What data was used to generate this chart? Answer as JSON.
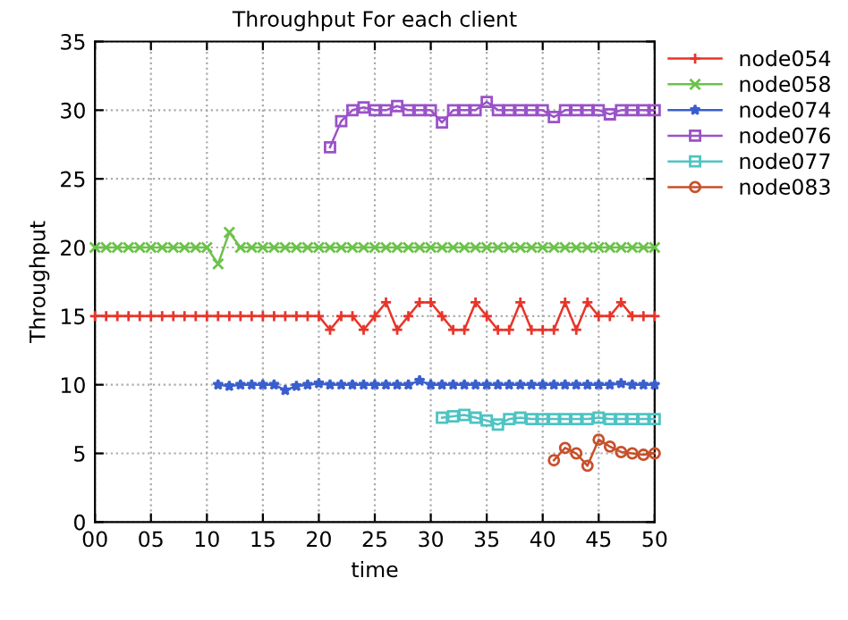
{
  "chart_data": {
    "type": "line",
    "title": "Throughput For each client",
    "xlabel": "time",
    "ylabel": "Throughput",
    "xlim": [
      0,
      50
    ],
    "xticks": [
      {
        "value": 0,
        "label": "00"
      },
      {
        "value": 5,
        "label": "05"
      },
      10,
      15,
      20,
      25,
      30,
      35,
      40,
      45,
      50
    ],
    "ylim": [
      0,
      35
    ],
    "yticks": [
      0,
      5,
      10,
      15,
      20,
      25,
      30,
      35
    ],
    "grid": true,
    "legend": "right",
    "line_style": "solid",
    "series": [
      {
        "name": "node054",
        "color": "#e8352a",
        "marker": "plus",
        "x": [
          0,
          1,
          2,
          3,
          4,
          5,
          6,
          7,
          8,
          9,
          10,
          11,
          12,
          13,
          14,
          15,
          16,
          17,
          18,
          19,
          20,
          21,
          22,
          23,
          24,
          25,
          26,
          27,
          28,
          29,
          30,
          31,
          32,
          33,
          34,
          35,
          36,
          37,
          38,
          39,
          40,
          41,
          42,
          43,
          44,
          45,
          46,
          47,
          48,
          49,
          50
        ],
        "values": [
          15,
          15,
          15,
          15,
          15,
          15,
          15,
          15,
          15,
          15,
          15,
          15,
          15,
          15,
          15,
          15,
          15,
          15,
          15,
          15,
          15,
          14,
          15,
          15,
          14,
          15,
          16,
          14,
          15,
          16,
          16,
          15,
          14,
          14,
          16,
          15,
          14,
          14,
          16,
          14,
          14,
          14,
          16,
          14,
          16,
          15,
          15,
          16,
          15,
          15,
          15
        ]
      },
      {
        "name": "node058",
        "color": "#6cc24a",
        "marker": "cross",
        "x": [
          0,
          1,
          2,
          3,
          4,
          5,
          6,
          7,
          8,
          9,
          10,
          11,
          12,
          13,
          14,
          15,
          16,
          17,
          18,
          19,
          20,
          21,
          22,
          23,
          24,
          25,
          26,
          27,
          28,
          29,
          30,
          31,
          32,
          33,
          34,
          35,
          36,
          37,
          38,
          39,
          40,
          41,
          42,
          43,
          44,
          45,
          46,
          47,
          48,
          49,
          50
        ],
        "values": [
          20,
          20,
          20,
          20,
          20,
          20,
          20,
          20,
          20,
          20,
          20,
          18.8,
          21.1,
          20,
          20,
          20,
          20,
          20,
          20,
          20,
          20,
          20,
          20,
          20,
          20,
          20,
          20,
          20,
          20,
          20,
          20,
          20,
          20,
          20,
          20,
          20,
          20,
          20,
          20,
          20,
          20,
          20,
          20,
          20,
          20,
          20,
          20,
          20,
          20,
          20,
          20
        ]
      },
      {
        "name": "node074",
        "color": "#3a5fcd",
        "marker": "star",
        "x": [
          11,
          12,
          13,
          14,
          15,
          16,
          17,
          18,
          19,
          20,
          21,
          22,
          23,
          24,
          25,
          26,
          27,
          28,
          29,
          30,
          31,
          32,
          33,
          34,
          35,
          36,
          37,
          38,
          39,
          40,
          41,
          42,
          43,
          44,
          45,
          46,
          47,
          48,
          49,
          50
        ],
        "values": [
          10,
          9.9,
          10,
          10,
          10,
          10,
          9.6,
          9.9,
          10,
          10.1,
          10,
          10,
          10,
          10,
          10,
          10,
          10,
          10,
          10.3,
          10,
          10,
          10,
          10,
          10,
          10,
          10,
          10,
          10,
          10,
          10,
          10,
          10,
          10,
          10,
          10,
          10,
          10.1,
          10,
          10,
          10
        ]
      },
      {
        "name": "node076",
        "color": "#9a52c8",
        "marker": "square",
        "x": [
          21,
          22,
          23,
          24,
          25,
          26,
          27,
          28,
          29,
          30,
          31,
          32,
          33,
          34,
          35,
          36,
          37,
          38,
          39,
          40,
          41,
          42,
          43,
          44,
          45,
          46,
          47,
          48,
          49,
          50
        ],
        "values": [
          27.3,
          29.2,
          30,
          30.2,
          30,
          30,
          30.3,
          30,
          30,
          30,
          29.1,
          30,
          30,
          30,
          30.6,
          30,
          30,
          30,
          30,
          30,
          29.5,
          30,
          30,
          30,
          30,
          29.7,
          30,
          30,
          30,
          30
        ]
      },
      {
        "name": "node077",
        "color": "#4fc3c3",
        "marker": "square",
        "x": [
          31,
          32,
          33,
          34,
          35,
          36,
          37,
          38,
          39,
          40,
          41,
          42,
          43,
          44,
          45,
          46,
          47,
          48,
          49,
          50
        ],
        "values": [
          7.6,
          7.7,
          7.8,
          7.6,
          7.4,
          7.1,
          7.5,
          7.6,
          7.5,
          7.5,
          7.5,
          7.5,
          7.5,
          7.5,
          7.6,
          7.5,
          7.5,
          7.5,
          7.5,
          7.5
        ]
      },
      {
        "name": "node083",
        "color": "#c8502a",
        "marker": "circle",
        "x": [
          41,
          42,
          43,
          44,
          45,
          46,
          47,
          48,
          49,
          50
        ],
        "values": [
          4.5,
          5.4,
          5.0,
          4.1,
          6.0,
          5.5,
          5.1,
          5.0,
          4.9,
          5.0
        ]
      }
    ]
  }
}
